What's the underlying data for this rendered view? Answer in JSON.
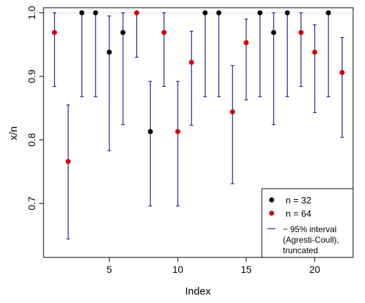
{
  "chart_data": {
    "type": "scatter",
    "xlabel": "Index",
    "ylabel": "x/n",
    "xlim": [
      0.2,
      22.8
    ],
    "ylim": [
      0.615,
      1.008
    ],
    "x_ticks": [
      5,
      10,
      15,
      20
    ],
    "y_ticks": [
      0.7,
      0.8,
      0.9,
      1.0
    ],
    "x_tick_labels": [
      "5",
      "10",
      "15",
      "20"
    ],
    "y_tick_labels": [
      "0.7",
      "0.8",
      "0.9",
      "1.0"
    ],
    "reference_line": {
      "y": 1.0,
      "style": "dotted",
      "color": "#b0b0b0"
    },
    "grid": false,
    "legend_position": "bottom-right",
    "colors": {
      "n32": "#000000",
      "n64": "#d40000",
      "interval": "#1f1f9e"
    },
    "points": [
      {
        "x": 1,
        "y": 0.969,
        "group": "n64",
        "lo": 0.884,
        "hi": 1.0
      },
      {
        "x": 2,
        "y": 0.766,
        "group": "n64",
        "lo": 0.644,
        "hi": 0.855
      },
      {
        "x": 3,
        "y": 1.0,
        "group": "n32",
        "lo": 0.868,
        "hi": 1.0
      },
      {
        "x": 4,
        "y": 1.0,
        "group": "n32",
        "lo": 0.868,
        "hi": 1.0
      },
      {
        "x": 5,
        "y": 0.938,
        "group": "n32",
        "lo": 0.783,
        "hi": 0.995
      },
      {
        "x": 6,
        "y": 0.969,
        "group": "n32",
        "lo": 0.824,
        "hi": 1.0
      },
      {
        "x": 7,
        "y": 1.0,
        "group": "n64",
        "lo": 0.93,
        "hi": 1.0
      },
      {
        "x": 8,
        "y": 0.813,
        "group": "n32",
        "lo": 0.696,
        "hi": 0.892
      },
      {
        "x": 9,
        "y": 0.969,
        "group": "n64",
        "lo": 0.884,
        "hi": 1.0
      },
      {
        "x": 10,
        "y": 0.813,
        "group": "n64",
        "lo": 0.696,
        "hi": 0.892
      },
      {
        "x": 11,
        "y": 0.922,
        "group": "n64",
        "lo": 0.823,
        "hi": 0.971
      },
      {
        "x": 12,
        "y": 1.0,
        "group": "n32",
        "lo": 0.868,
        "hi": 1.0
      },
      {
        "x": 13,
        "y": 1.0,
        "group": "n32",
        "lo": 0.868,
        "hi": 1.0
      },
      {
        "x": 14,
        "y": 0.844,
        "group": "n64",
        "lo": 0.731,
        "hi": 0.917
      },
      {
        "x": 15,
        "y": 0.953,
        "group": "n64",
        "lo": 0.863,
        "hi": 0.99
      },
      {
        "x": 16,
        "y": 1.0,
        "group": "n32",
        "lo": 0.868,
        "hi": 1.0
      },
      {
        "x": 17,
        "y": 0.969,
        "group": "n32",
        "lo": 0.824,
        "hi": 1.0
      },
      {
        "x": 18,
        "y": 1.0,
        "group": "n32",
        "lo": 0.868,
        "hi": 1.0
      },
      {
        "x": 19,
        "y": 0.969,
        "group": "n64",
        "lo": 0.884,
        "hi": 1.0
      },
      {
        "x": 20,
        "y": 0.938,
        "group": "n64",
        "lo": 0.843,
        "hi": 0.981
      },
      {
        "x": 21,
        "y": 1.0,
        "group": "n32",
        "lo": 0.868,
        "hi": 1.0
      },
      {
        "x": 22,
        "y": 0.906,
        "group": "n64",
        "lo": 0.804,
        "hi": 0.961
      }
    ],
    "legend": {
      "n32_label": "n = 32",
      "n64_label": "n = 64",
      "interval_label_lines": [
        "~ 95% interval",
        "(Agresti-Coull),",
        "truncated"
      ]
    }
  }
}
